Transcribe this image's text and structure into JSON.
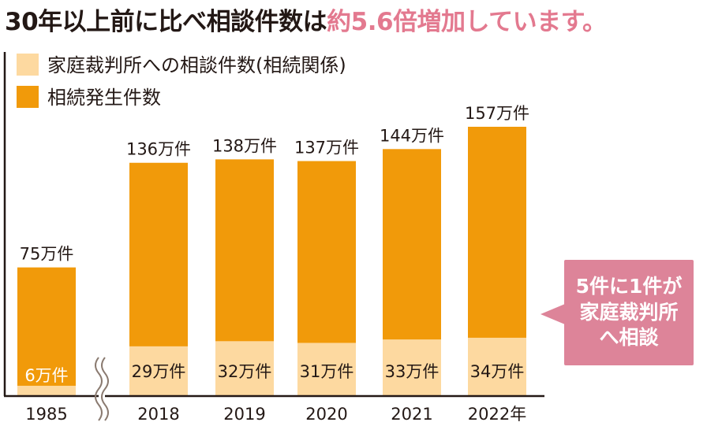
{
  "headline": {
    "main": "30年以上前に比べ相談件数は",
    "accent": "約5.6倍増加しています。"
  },
  "callout": {
    "lines": [
      "5件に1件が",
      "家庭裁判所",
      "へ相談"
    ]
  },
  "colors": {
    "consult": "#fdd9a0",
    "inherit": "#f19a0a",
    "accent": "#e3798f",
    "callout_bg": "#dd8499",
    "axis": "#231815"
  },
  "chart_data": {
    "type": "bar",
    "stacked": "overlay",
    "categories": [
      "1985",
      "2018",
      "2019",
      "2020",
      "2021",
      "2022年"
    ],
    "axis_break_after": "1985",
    "series": [
      {
        "name": "家庭裁判所への相談件数(相続関係)",
        "color": "#fdd9a0",
        "values": [
          6,
          29,
          32,
          31,
          33,
          34
        ],
        "labels": [
          "6万件",
          "29万件",
          "32万件",
          "31万件",
          "33万件",
          "34万件"
        ]
      },
      {
        "name": "相続発生件数",
        "color": "#f19a0a",
        "values": [
          75,
          136,
          138,
          137,
          144,
          157
        ],
        "labels": [
          "75万件",
          "136万件",
          "138万件",
          "137万件",
          "144万件",
          "157万件"
        ]
      }
    ],
    "unit": "万件",
    "ylim": [
      0,
      160
    ],
    "legend_position": "top-left",
    "grid": false
  }
}
